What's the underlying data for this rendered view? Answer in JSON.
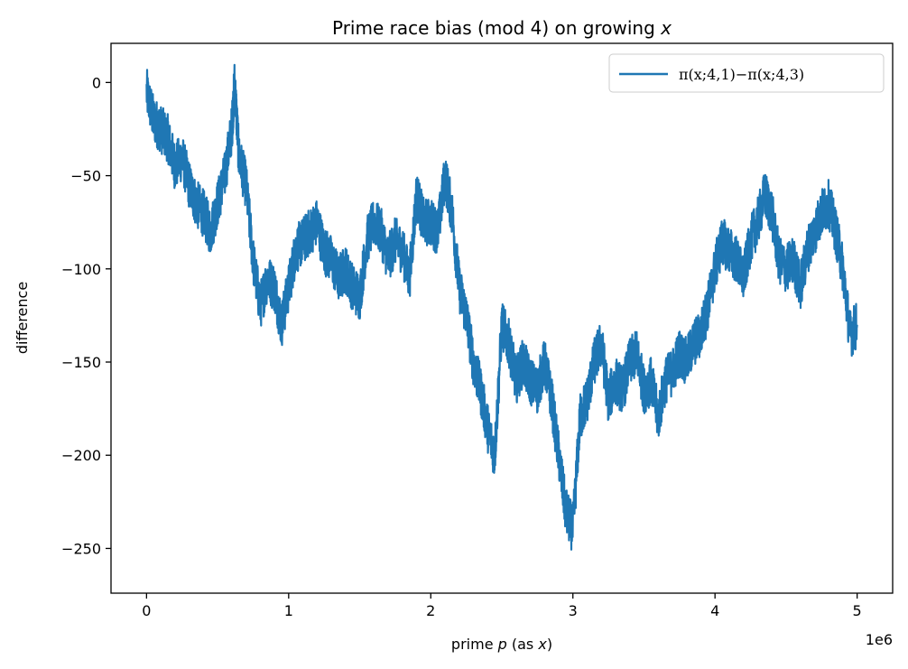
{
  "chart_data": {
    "type": "line",
    "title": "Prime race bias (mod 4) on growing ",
    "title_var": "x",
    "xlabel_pre": "prime ",
    "xlabel_var1": "p",
    "xlabel_mid": " (as ",
    "xlabel_var2": "x",
    "xlabel_post": ")",
    "ylabel": "difference",
    "x_offset_label": "1e6",
    "xlim": [
      -250000,
      5250000
    ],
    "ylim": [
      -274,
      21
    ],
    "x_ticks": [
      0,
      1000000,
      2000000,
      3000000,
      4000000,
      5000000
    ],
    "x_tick_labels": [
      "0",
      "1",
      "2",
      "3",
      "4",
      "5"
    ],
    "y_ticks": [
      0,
      -50,
      -100,
      -150,
      -200,
      -250
    ],
    "y_tick_labels": [
      "0",
      "−50",
      "−100",
      "−150",
      "−200",
      "−250"
    ],
    "grid": false,
    "legend_position": "top-right",
    "series": [
      {
        "name": "π(x;4,1)−π(x;4,3)",
        "color": "#1f77b4",
        "x": [
          0,
          50000,
          100000,
          150000,
          200000,
          250000,
          300000,
          350000,
          400000,
          450000,
          500000,
          550000,
          600000,
          620000,
          650000,
          700000,
          750000,
          800000,
          850000,
          900000,
          950000,
          1000000,
          1050000,
          1100000,
          1150000,
          1200000,
          1250000,
          1300000,
          1350000,
          1400000,
          1450000,
          1500000,
          1550000,
          1600000,
          1650000,
          1700000,
          1750000,
          1800000,
          1850000,
          1900000,
          1950000,
          2000000,
          2050000,
          2100000,
          2150000,
          2200000,
          2250000,
          2300000,
          2350000,
          2400000,
          2450000,
          2500000,
          2550000,
          2600000,
          2650000,
          2700000,
          2750000,
          2800000,
          2850000,
          2900000,
          2950000,
          3000000,
          3050000,
          3100000,
          3150000,
          3200000,
          3250000,
          3300000,
          3350000,
          3400000,
          3450000,
          3500000,
          3550000,
          3600000,
          3650000,
          3700000,
          3750000,
          3800000,
          3850000,
          3900000,
          3950000,
          4000000,
          4050000,
          4100000,
          4150000,
          4200000,
          4250000,
          4300000,
          4350000,
          4400000,
          4450000,
          4500000,
          4550000,
          4600000,
          4650000,
          4700000,
          4750000,
          4800000,
          4850000,
          4900000,
          4950000,
          5000000
        ],
        "y": [
          -5,
          -20,
          -25,
          -30,
          -45,
          -40,
          -55,
          -65,
          -70,
          -80,
          -65,
          -50,
          -25,
          0,
          -40,
          -55,
          -95,
          -120,
          -105,
          -110,
          -130,
          -110,
          -90,
          -85,
          -80,
          -75,
          -90,
          -95,
          -105,
          -100,
          -110,
          -115,
          -85,
          -75,
          -80,
          -95,
          -85,
          -90,
          -105,
          -60,
          -75,
          -75,
          -80,
          -50,
          -70,
          -110,
          -125,
          -150,
          -165,
          -185,
          -200,
          -130,
          -140,
          -160,
          -150,
          -160,
          -165,
          -150,
          -170,
          -200,
          -230,
          -240,
          -180,
          -170,
          -150,
          -140,
          -170,
          -160,
          -165,
          -150,
          -145,
          -165,
          -160,
          -180,
          -160,
          -155,
          -145,
          -150,
          -140,
          -135,
          -120,
          -100,
          -85,
          -90,
          -95,
          -105,
          -85,
          -75,
          -60,
          -70,
          -95,
          -100,
          -95,
          -110,
          -90,
          -80,
          -70,
          -65,
          -80,
          -100,
          -135,
          -130
        ]
      }
    ]
  }
}
